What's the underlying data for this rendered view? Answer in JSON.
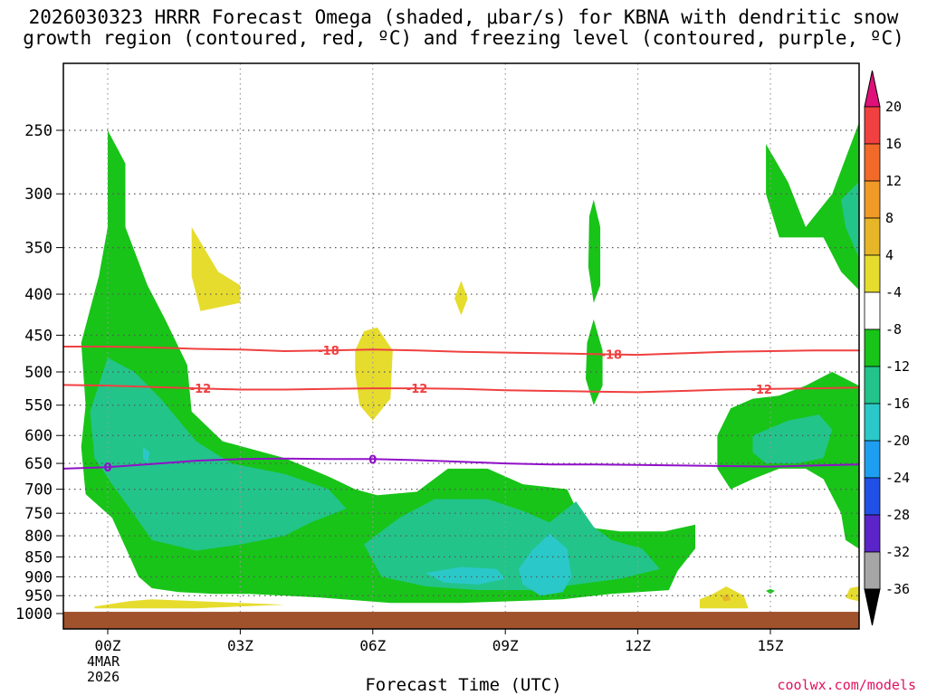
{
  "title_line1": "2026030323 HRRR Forecast Omega (shaded, μbar/s) for KBNA with dendritic snow",
  "title_line2": "growth region (contoured, red, ºC) and freezing level (contoured, purple, ºC)",
  "x_axis_title": "Forecast Time (UTC)",
  "credit": "coolwx.com/models",
  "date_line1": "4MAR",
  "date_line2": "2026",
  "chart_data": {
    "type": "contour",
    "x_hours": [
      -1,
      17
    ],
    "y_pressure_hpa": [
      200,
      1015
    ],
    "x_ticks": [
      {
        "hour": 0,
        "label": "00Z"
      },
      {
        "hour": 3,
        "label": "03Z"
      },
      {
        "hour": 6,
        "label": "06Z"
      },
      {
        "hour": 9,
        "label": "09Z"
      },
      {
        "hour": 12,
        "label": "12Z"
      },
      {
        "hour": 15,
        "label": "15Z"
      }
    ],
    "y_ticks": [
      250,
      300,
      350,
      400,
      450,
      500,
      550,
      600,
      650,
      700,
      750,
      800,
      850,
      900,
      950,
      1000
    ],
    "colorbar": {
      "labels": [
        "20",
        "16",
        "12",
        "8",
        "4",
        "-4",
        "-8",
        "-12",
        "-16",
        "-20",
        "-24",
        "-28",
        "-32",
        "-36"
      ],
      "colors": [
        "#f04040",
        "#f26a2a",
        "#f09a28",
        "#e7b628",
        "#e6dc2e",
        "#ffffff",
        "#18c418",
        "#22c48a",
        "#2ac8c8",
        "#1e9ef0",
        "#2050e6",
        "#5a24c8",
        "#9a10c8",
        "#a6a6a6"
      ],
      "top_arrow_color": "#e0107a",
      "bottom_arrow_color": "#000000"
    },
    "contours": [
      {
        "name": "dgz-minus-18",
        "label": "-18",
        "color": "#f04040",
        "points": [
          [
            -1,
            465
          ],
          [
            0,
            465
          ],
          [
            1,
            466
          ],
          [
            2,
            468
          ],
          [
            3,
            469
          ],
          [
            4,
            471
          ],
          [
            5,
            470
          ],
          [
            6,
            469
          ],
          [
            7,
            470
          ],
          [
            8,
            472
          ],
          [
            9,
            473
          ],
          [
            10,
            474
          ],
          [
            11,
            475
          ],
          [
            12,
            476
          ],
          [
            13,
            474
          ],
          [
            14,
            472
          ],
          [
            15,
            471
          ],
          [
            16,
            470
          ],
          [
            17,
            470
          ]
        ],
        "label_hours": [
          5,
          11.4
        ]
      },
      {
        "name": "dgz-minus-12",
        "label": "-12",
        "color": "#f04040",
        "points": [
          [
            -1,
            519
          ],
          [
            0,
            520
          ],
          [
            1,
            522
          ],
          [
            2,
            524
          ],
          [
            3,
            526
          ],
          [
            4,
            526
          ],
          [
            5,
            525
          ],
          [
            6,
            524
          ],
          [
            7,
            524
          ],
          [
            8,
            525
          ],
          [
            9,
            527
          ],
          [
            10,
            528
          ],
          [
            11,
            529
          ],
          [
            12,
            530
          ],
          [
            13,
            528
          ],
          [
            14,
            526
          ],
          [
            15,
            525
          ],
          [
            16,
            524
          ],
          [
            17,
            523
          ]
        ],
        "label_hours": [
          2.1,
          7,
          14.8
        ]
      },
      {
        "name": "freezing-level",
        "label": "0",
        "color": "#9010c8",
        "points": [
          [
            -1,
            660
          ],
          [
            0,
            657
          ],
          [
            1,
            651
          ],
          [
            2,
            645
          ],
          [
            3,
            642
          ],
          [
            4,
            641
          ],
          [
            5,
            642
          ],
          [
            6,
            642
          ],
          [
            7,
            644
          ],
          [
            8,
            647
          ],
          [
            9,
            650
          ],
          [
            10,
            652
          ],
          [
            11,
            652
          ],
          [
            12,
            653
          ],
          [
            13,
            654
          ],
          [
            14,
            655
          ],
          [
            15,
            656
          ],
          [
            16,
            654
          ],
          [
            17,
            652
          ]
        ],
        "label_hours": [
          0,
          6
        ]
      }
    ],
    "shaded_regions": [
      {
        "name": "omega-minus4-main",
        "level": "-4",
        "color": "#18c418",
        "points": [
          [
            0,
            250
          ],
          [
            0.4,
            275
          ],
          [
            0.4,
            330
          ],
          [
            0.9,
            390
          ],
          [
            1.3,
            430
          ],
          [
            1.8,
            490
          ],
          [
            1.9,
            560
          ],
          [
            2.6,
            610
          ],
          [
            4,
            640
          ],
          [
            5,
            675
          ],
          [
            5.6,
            700
          ],
          [
            6.1,
            712
          ],
          [
            7,
            705
          ],
          [
            7.7,
            660
          ],
          [
            8.6,
            660
          ],
          [
            9.4,
            690
          ],
          [
            10.4,
            700
          ],
          [
            10.8,
            780
          ],
          [
            11.6,
            790
          ],
          [
            12.6,
            790
          ],
          [
            13.3,
            775
          ],
          [
            13.3,
            830
          ],
          [
            12.9,
            885
          ],
          [
            12.7,
            935
          ],
          [
            11.4,
            945
          ],
          [
            10.3,
            960
          ],
          [
            9.2,
            965
          ],
          [
            8,
            970
          ],
          [
            6.4,
            970
          ],
          [
            4.8,
            955
          ],
          [
            3.2,
            945
          ],
          [
            2.4,
            945
          ],
          [
            1.6,
            940
          ],
          [
            1,
            930
          ],
          [
            0.7,
            900
          ],
          [
            0.5,
            850
          ],
          [
            0.1,
            760
          ],
          [
            -0.5,
            710
          ],
          [
            -0.6,
            620
          ],
          [
            -0.5,
            550
          ],
          [
            -0.6,
            460
          ],
          [
            -0.2,
            380
          ],
          [
            0,
            330
          ]
        ]
      },
      {
        "name": "omega-minus4-right-upper",
        "level": "-4",
        "color": "#18c418",
        "points": [
          [
            14.9,
            260
          ],
          [
            15.4,
            290
          ],
          [
            15.8,
            330
          ],
          [
            16.4,
            300
          ],
          [
            17,
            245
          ],
          [
            17,
            395
          ],
          [
            16.6,
            375
          ],
          [
            16.2,
            340
          ],
          [
            15.2,
            340
          ],
          [
            14.9,
            300
          ]
        ]
      },
      {
        "name": "omega-minus4-right-lower",
        "level": "-4",
        "color": "#18c418",
        "points": [
          [
            13.8,
            600
          ],
          [
            14.1,
            555
          ],
          [
            14.6,
            540
          ],
          [
            15.2,
            535
          ],
          [
            15.8,
            520
          ],
          [
            16.4,
            500
          ],
          [
            17,
            520
          ],
          [
            17,
            830
          ],
          [
            16.7,
            810
          ],
          [
            16.6,
            750
          ],
          [
            16.2,
            680
          ],
          [
            15.8,
            660
          ],
          [
            15.2,
            660
          ],
          [
            14.6,
            680
          ],
          [
            14.1,
            700
          ],
          [
            13.8,
            660
          ]
        ]
      },
      {
        "name": "omega-minus4-spike",
        "level": "-4",
        "color": "#18c418",
        "points": [
          [
            11,
            305
          ],
          [
            11.15,
            330
          ],
          [
            11.15,
            390
          ],
          [
            11,
            410
          ],
          [
            10.88,
            370
          ],
          [
            10.9,
            320
          ]
        ]
      },
      {
        "name": "omega-minus4-spike2",
        "level": "-4",
        "color": "#18c418",
        "points": [
          [
            11,
            430
          ],
          [
            11.2,
            470
          ],
          [
            11.2,
            520
          ],
          [
            11,
            550
          ],
          [
            10.82,
            510
          ],
          [
            10.85,
            460
          ]
        ]
      },
      {
        "name": "omega-minus8-left",
        "level": "-8",
        "color": "#22c48a",
        "points": [
          [
            0,
            480
          ],
          [
            0.6,
            500
          ],
          [
            1.2,
            540
          ],
          [
            2,
            610
          ],
          [
            2.8,
            650
          ],
          [
            4,
            670
          ],
          [
            5,
            700
          ],
          [
            5.4,
            740
          ],
          [
            4.6,
            770
          ],
          [
            4,
            800
          ],
          [
            3,
            820
          ],
          [
            2,
            835
          ],
          [
            1,
            810
          ],
          [
            0.5,
            740
          ],
          [
            0.1,
            690
          ],
          [
            -0.3,
            640
          ],
          [
            -0.4,
            560
          ]
        ]
      },
      {
        "name": "omega-minus8-mid",
        "level": "-8",
        "color": "#22c48a",
        "points": [
          [
            5.8,
            820
          ],
          [
            6.6,
            760
          ],
          [
            7.4,
            720
          ],
          [
            8.6,
            720
          ],
          [
            9.4,
            745
          ],
          [
            10,
            770
          ],
          [
            10.6,
            725
          ],
          [
            11,
            780
          ],
          [
            11.4,
            810
          ],
          [
            12.1,
            830
          ],
          [
            12.5,
            880
          ],
          [
            11.6,
            905
          ],
          [
            10.6,
            920
          ],
          [
            9.6,
            935
          ],
          [
            8.4,
            935
          ],
          [
            7.2,
            925
          ],
          [
            6.2,
            900
          ]
        ]
      },
      {
        "name": "omega-minus8-right-upper",
        "level": "-8",
        "color": "#22c48a",
        "points": [
          [
            16.6,
            305
          ],
          [
            17,
            290
          ],
          [
            17,
            360
          ],
          [
            16.7,
            330
          ]
        ]
      },
      {
        "name": "omega-minus8-right-lower",
        "level": "-8",
        "color": "#22c48a",
        "points": [
          [
            14.6,
            600
          ],
          [
            15.4,
            575
          ],
          [
            16.1,
            565
          ],
          [
            16.4,
            590
          ],
          [
            16.2,
            640
          ],
          [
            15.6,
            650
          ],
          [
            14.9,
            650
          ],
          [
            14.6,
            630
          ]
        ]
      },
      {
        "name": "omega-minus12-a",
        "level": "-12",
        "color": "#2ac8c8",
        "points": [
          [
            0.8,
            620
          ],
          [
            0.95,
            630
          ],
          [
            0.9,
            650
          ],
          [
            0.8,
            640
          ]
        ]
      },
      {
        "name": "omega-minus12-b",
        "level": "-12",
        "color": "#2ac8c8",
        "points": [
          [
            7.2,
            890
          ],
          [
            8,
            875
          ],
          [
            8.8,
            880
          ],
          [
            9,
            905
          ],
          [
            8.4,
            920
          ],
          [
            7.6,
            915
          ]
        ]
      },
      {
        "name": "omega-minus12-c",
        "level": "-12",
        "color": "#2ac8c8",
        "points": [
          [
            9.3,
            880
          ],
          [
            9.6,
            835
          ],
          [
            10,
            795
          ],
          [
            10.4,
            830
          ],
          [
            10.5,
            900
          ],
          [
            10.3,
            940
          ],
          [
            9.8,
            950
          ],
          [
            9.4,
            920
          ]
        ]
      },
      {
        "name": "omega-plus4-a",
        "level": "4",
        "color": "#e6dc2e",
        "points": [
          [
            1.9,
            330
          ],
          [
            2.5,
            375
          ],
          [
            3,
            390
          ],
          [
            3,
            410
          ],
          [
            2.1,
            420
          ],
          [
            1.9,
            380
          ]
        ]
      },
      {
        "name": "omega-plus4-b",
        "level": "4",
        "color": "#e6dc2e",
        "points": [
          [
            8,
            385
          ],
          [
            8.15,
            405
          ],
          [
            8,
            425
          ],
          [
            7.85,
            405
          ]
        ]
      },
      {
        "name": "omega-plus4-c",
        "level": "4",
        "color": "#e6dc2e",
        "points": [
          [
            5.6,
            470
          ],
          [
            5.8,
            445
          ],
          [
            6.1,
            440
          ],
          [
            6.45,
            470
          ],
          [
            6.4,
            540
          ],
          [
            6,
            575
          ],
          [
            5.7,
            550
          ],
          [
            5.6,
            500
          ]
        ]
      },
      {
        "name": "omega-plus4-d",
        "level": "4",
        "color": "#e6dc2e",
        "points": [
          [
            -0.3,
            980
          ],
          [
            0.5,
            965
          ],
          [
            1,
            960
          ],
          [
            2,
            965
          ],
          [
            4,
            975
          ],
          [
            2,
            985
          ],
          [
            -0.3,
            985
          ]
        ]
      },
      {
        "name": "omega-plus4-e",
        "level": "4",
        "color": "#e6dc2e",
        "points": [
          [
            13.4,
            960
          ],
          [
            13.7,
            945
          ],
          [
            14,
            925
          ],
          [
            14.4,
            950
          ],
          [
            14.5,
            985
          ],
          [
            13.4,
            985
          ]
        ]
      },
      {
        "name": "omega-plus4-f",
        "level": "4",
        "color": "#e6dc2e",
        "points": [
          [
            16.7,
            955
          ],
          [
            16.8,
            930
          ],
          [
            17,
            925
          ],
          [
            17,
            965
          ],
          [
            16.8,
            960
          ]
        ]
      },
      {
        "name": "omega-plus8-a",
        "level": "8",
        "color": "#e7b628",
        "points": [
          [
            13.9,
            952
          ],
          [
            14.05,
            945
          ],
          [
            14.1,
            962
          ],
          [
            13.95,
            966
          ]
        ]
      },
      {
        "name": "omega-minus4-dot",
        "level": "-4",
        "color": "#18c418",
        "points": [
          [
            15,
            932
          ],
          [
            15.1,
            937
          ],
          [
            15,
            945
          ],
          [
            14.9,
            937
          ]
        ]
      }
    ],
    "ground_pressure_hpa": 995
  }
}
